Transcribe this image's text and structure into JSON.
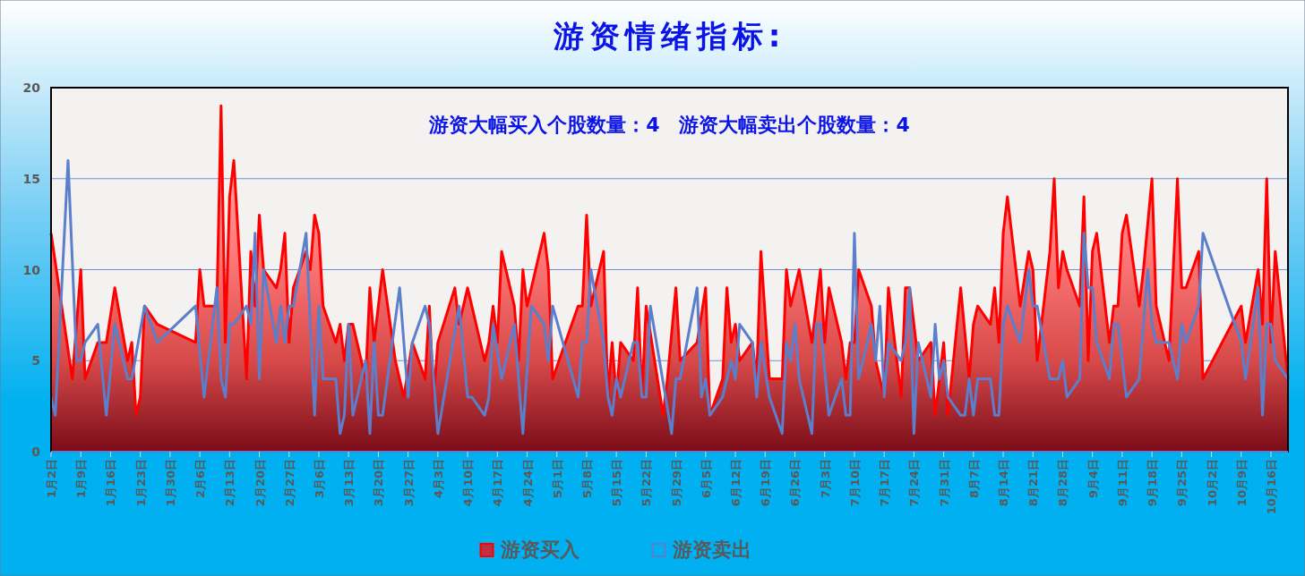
{
  "chart_data": {
    "type": "area",
    "title": "游资情绪指标:",
    "annotations": [
      "游资大幅买入个股数量：4　游资大幅卖出个股数量：4"
    ],
    "xlim": [
      "--01-02",
      "--10-20"
    ],
    "xticks": [
      {
        "value": "--01-02",
        "label": "1月2日"
      },
      {
        "value": "--01-09",
        "label": "1月9日"
      },
      {
        "value": "--01-16",
        "label": "1月16日"
      },
      {
        "value": "--01-23",
        "label": "1月23日"
      },
      {
        "value": "--01-30",
        "label": "1月30日"
      },
      {
        "value": "--02-06",
        "label": "2月6日"
      },
      {
        "value": "--02-13",
        "label": "2月13日"
      },
      {
        "value": "--02-20",
        "label": "2月20日"
      },
      {
        "value": "--02-27",
        "label": "2月27日"
      },
      {
        "value": "--03-06",
        "label": "3月6日"
      },
      {
        "value": "--03-13",
        "label": "3月13日"
      },
      {
        "value": "--03-20",
        "label": "3月20日"
      },
      {
        "value": "--03-27",
        "label": "3月27日"
      },
      {
        "value": "--04-03",
        "label": "4月3日"
      },
      {
        "value": "--04-10",
        "label": "4月10日"
      },
      {
        "value": "--04-17",
        "label": "4月17日"
      },
      {
        "value": "--04-24",
        "label": "4月24日"
      },
      {
        "value": "--05-01",
        "label": "5月1日"
      },
      {
        "value": "--05-08",
        "label": "5月8日"
      },
      {
        "value": "--05-15",
        "label": "5月15日"
      },
      {
        "value": "--05-22",
        "label": "5月22日"
      },
      {
        "value": "--05-29",
        "label": "5月29日"
      },
      {
        "value": "--06-05",
        "label": "6月5日"
      },
      {
        "value": "--06-12",
        "label": "6月12日"
      },
      {
        "value": "--06-19",
        "label": "6月19日"
      },
      {
        "value": "--06-26",
        "label": "6月26日"
      },
      {
        "value": "--07-03",
        "label": "7月3日"
      },
      {
        "value": "--07-10",
        "label": "7月10日"
      },
      {
        "value": "--07-17",
        "label": "7月17日"
      },
      {
        "value": "--07-24",
        "label": "7月24日"
      },
      {
        "value": "--07-31",
        "label": "7月31日"
      },
      {
        "value": "--08-07",
        "label": "8月7日"
      },
      {
        "value": "--08-14",
        "label": "8月14日"
      },
      {
        "value": "--08-21",
        "label": "8月21日"
      },
      {
        "value": "--08-28",
        "label": "8月28日"
      },
      {
        "value": "--09-04",
        "label": "9月4日"
      },
      {
        "value": "--09-11",
        "label": "9月11日"
      },
      {
        "value": "--09-18",
        "label": "9月18日"
      },
      {
        "value": "--09-25",
        "label": "9月25日"
      },
      {
        "value": "--10-02",
        "label": "10月2日"
      },
      {
        "value": "--10-09",
        "label": "10月9日"
      },
      {
        "value": "--10-16",
        "label": "10月16日"
      }
    ],
    "ylim": [
      0,
      20
    ],
    "yticks": [
      0,
      5,
      10,
      15,
      20
    ],
    "grid": "y",
    "legend": "bottom",
    "series": [
      {
        "name": "游资买入",
        "color": "#ff0000",
        "x": [
          "--01-02",
          "--01-07",
          "--01-09",
          "--01-10",
          "--01-13",
          "--01-15",
          "--01-17",
          "--01-20",
          "--01-21",
          "--01-22",
          "--01-23",
          "--01-24",
          "--01-27",
          "--02-05",
          "--02-06",
          "--02-07",
          "--02-10",
          "--02-11",
          "--02-12",
          "--02-13",
          "--02-14",
          "--02-17",
          "--02-18",
          "--02-19",
          "--02-20",
          "--02-21",
          "--02-24",
          "--02-25",
          "--02-26",
          "--02-27",
          "--02-28",
          "--03-03",
          "--03-04",
          "--03-05",
          "--03-06",
          "--03-07",
          "--03-10",
          "--03-11",
          "--03-12",
          "--03-13",
          "--03-14",
          "--03-17",
          "--03-18",
          "--03-19",
          "--03-21",
          "--03-24",
          "--03-26",
          "--03-28",
          "--03-31",
          "--04-01",
          "--04-02",
          "--04-03",
          "--04-07",
          "--04-08",
          "--04-10",
          "--04-14",
          "--04-15",
          "--04-16",
          "--04-17",
          "--04-18",
          "--04-21",
          "--04-22",
          "--04-23",
          "--04-24",
          "--04-28",
          "--04-29",
          "--04-30",
          "--05-06",
          "--05-07",
          "--05-08",
          "--05-09",
          "--05-12",
          "--05-13",
          "--05-14",
          "--05-15",
          "--05-16",
          "--05-19",
          "--05-20",
          "--05-21",
          "--05-22",
          "--05-26",
          "--05-27",
          "--05-29",
          "--05-30",
          "--06-03",
          "--06-05",
          "--06-06",
          "--06-09",
          "--06-10",
          "--06-11",
          "--06-12",
          "--06-13",
          "--06-16",
          "--06-17",
          "--06-18",
          "--06-20",
          "--06-23",
          "--06-24",
          "--06-25",
          "--06-27",
          "--06-30",
          "--07-02",
          "--07-03",
          "--07-04",
          "--07-07",
          "--07-08",
          "--07-09",
          "--07-10",
          "--07-11",
          "--07-14",
          "--07-15",
          "--07-17",
          "--07-18",
          "--07-21",
          "--07-22",
          "--07-23",
          "--07-25",
          "--07-28",
          "--07-29",
          "--07-31",
          "--08-01",
          "--08-04",
          "--08-06",
          "--08-07",
          "--08-08",
          "--08-11",
          "--08-12",
          "--08-13",
          "--08-14",
          "--08-15",
          "--08-18",
          "--08-20",
          "--08-21",
          "--08-22",
          "--08-25",
          "--08-26",
          "--08-27",
          "--08-28",
          "--08-29",
          "--09-01",
          "--09-02",
          "--09-03",
          "--09-04",
          "--09-05",
          "--09-08",
          "--09-09",
          "--09-10",
          "--09-11",
          "--09-12",
          "--09-15",
          "--09-16",
          "--09-18",
          "--09-19",
          "--09-22",
          "--09-24",
          "--09-25",
          "--09-26",
          "--09-29",
          "--09-30",
          "--10-09",
          "--10-10",
          "--10-13",
          "--10-14",
          "--10-15",
          "--10-16",
          "--10-17",
          "--10-20"
        ],
        "values": [
          12,
          4,
          10,
          4,
          6,
          6,
          9,
          5,
          6,
          2,
          3,
          8,
          7,
          6,
          10,
          8,
          8,
          19,
          6,
          14,
          16,
          4,
          11,
          8,
          13,
          10,
          9,
          10,
          12,
          6,
          9,
          11,
          10,
          13,
          12,
          8,
          6,
          7,
          5,
          7,
          7,
          4,
          9,
          6,
          10,
          5,
          3,
          6,
          4,
          8,
          3,
          6,
          9,
          7,
          9,
          5,
          6,
          8,
          6,
          11,
          8,
          5,
          10,
          8,
          12,
          10,
          4,
          8,
          8,
          13,
          8,
          11,
          3,
          6,
          3,
          6,
          5,
          9,
          3,
          8,
          2,
          4,
          9,
          5,
          6,
          9,
          2,
          4,
          9,
          6,
          7,
          5,
          6,
          4,
          11,
          4,
          4,
          10,
          8,
          10,
          6,
          10,
          6,
          9,
          6,
          4,
          6,
          6,
          10,
          8,
          5,
          3,
          9,
          3,
          9,
          9,
          5,
          6,
          2,
          6,
          2,
          9,
          4,
          7,
          8,
          7,
          9,
          6,
          12,
          14,
          8,
          11,
          10,
          5,
          11,
          15,
          9,
          11,
          10,
          8,
          14,
          5,
          11,
          12,
          6,
          8,
          8,
          12,
          13,
          8,
          10,
          15,
          8,
          5,
          15,
          9,
          9,
          11,
          4,
          8,
          6,
          10,
          7,
          15,
          6,
          11,
          4
        ]
      },
      {
        "name": "游资卖出",
        "type": "line",
        "color": "#5b7fcb",
        "x": [
          "--01-02",
          "--01-03",
          "--01-06",
          "--01-08",
          "--01-09",
          "--01-10",
          "--01-13",
          "--01-15",
          "--01-17",
          "--01-20",
          "--01-21",
          "--01-24",
          "--01-27",
          "--02-05",
          "--02-07",
          "--02-10",
          "--02-11",
          "--02-12",
          "--02-13",
          "--02-14",
          "--02-17",
          "--02-18",
          "--02-19",
          "--02-20",
          "--02-21",
          "--02-24",
          "--02-25",
          "--02-26",
          "--02-27",
          "--02-28",
          "--03-03",
          "--03-05",
          "--03-06",
          "--03-07",
          "--03-10",
          "--03-11",
          "--03-12",
          "--03-13",
          "--03-14",
          "--03-17",
          "--03-18",
          "--03-19",
          "--03-20",
          "--03-21",
          "--03-25",
          "--03-27",
          "--03-28",
          "--03-31",
          "--04-01",
          "--04-03",
          "--04-08",
          "--04-10",
          "--04-11",
          "--04-14",
          "--04-15",
          "--04-16",
          "--04-18",
          "--04-21",
          "--04-23",
          "--04-25",
          "--04-28",
          "--04-29",
          "--04-30",
          "--05-06",
          "--05-07",
          "--05-08",
          "--05-09",
          "--05-12",
          "--05-13",
          "--05-14",
          "--05-15",
          "--05-16",
          "--05-19",
          "--05-20",
          "--05-21",
          "--05-22",
          "--05-23",
          "--05-28",
          "--05-29",
          "--05-30",
          "--06-03",
          "--06-04",
          "--06-05",
          "--06-06",
          "--06-09",
          "--06-11",
          "--06-12",
          "--06-13",
          "--06-16",
          "--06-17",
          "--06-18",
          "--06-20",
          "--06-23",
          "--06-24",
          "--06-25",
          "--06-26",
          "--06-27",
          "--06-30",
          "--07-01",
          "--07-02",
          "--07-04",
          "--07-07",
          "--07-08",
          "--07-09",
          "--07-10",
          "--07-11",
          "--07-14",
          "--07-15",
          "--07-16",
          "--07-17",
          "--07-18",
          "--07-21",
          "--07-22",
          "--07-23",
          "--07-24",
          "--07-25",
          "--07-28",
          "--07-29",
          "--07-30",
          "--07-31",
          "--08-01",
          "--08-04",
          "--08-05",
          "--08-06",
          "--08-07",
          "--08-08",
          "--08-11",
          "--08-12",
          "--08-13",
          "--08-14",
          "--08-15",
          "--08-18",
          "--08-20",
          "--08-21",
          "--08-22",
          "--08-25",
          "--08-26",
          "--08-27",
          "--08-28",
          "--08-29",
          "--09-01",
          "--09-02",
          "--09-03",
          "--09-04",
          "--09-05",
          "--09-08",
          "--09-09",
          "--09-10",
          "--09-12",
          "--09-15",
          "--09-17",
          "--09-18",
          "--09-19",
          "--09-22",
          "--09-24",
          "--09-25",
          "--09-26",
          "--09-29",
          "--09-30",
          "--10-09",
          "--10-10",
          "--10-13",
          "--10-14",
          "--10-15",
          "--10-16",
          "--10-17",
          "--10-20"
        ],
        "values": [
          3,
          2,
          16,
          5,
          5,
          6,
          7,
          2,
          7,
          4,
          4,
          8,
          6,
          8,
          3,
          9,
          4,
          3,
          7,
          7,
          8,
          7,
          12,
          4,
          10,
          6,
          8,
          6,
          8,
          8,
          12,
          2,
          8,
          4,
          4,
          1,
          2,
          7,
          2,
          5,
          1,
          6,
          2,
          2,
          9,
          3,
          6,
          8,
          7,
          1,
          8,
          3,
          3,
          2,
          3,
          7,
          4,
          7,
          1,
          8,
          7,
          5,
          8,
          3,
          6,
          6,
          10,
          6,
          3,
          2,
          4,
          3,
          6,
          6,
          3,
          3,
          8,
          1,
          4,
          4,
          9,
          3,
          4,
          2,
          3,
          5,
          4,
          7,
          6,
          3,
          6,
          3,
          1,
          6,
          5,
          7,
          4,
          1,
          7,
          7,
          2,
          4,
          2,
          2,
          12,
          4,
          7,
          5,
          8,
          3,
          6,
          5,
          6,
          9,
          1,
          6,
          3,
          7,
          4,
          5,
          3,
          2,
          2,
          4,
          2,
          4,
          4,
          2,
          2,
          7,
          8,
          6,
          10,
          8,
          8,
          4,
          4,
          4,
          5,
          3,
          4,
          12,
          9,
          9,
          6,
          4,
          7,
          7,
          3,
          4,
          10,
          7,
          6,
          6,
          4,
          7,
          6,
          8,
          12,
          6,
          4,
          9,
          2,
          7,
          7,
          5,
          4
        ]
      }
    ]
  }
}
